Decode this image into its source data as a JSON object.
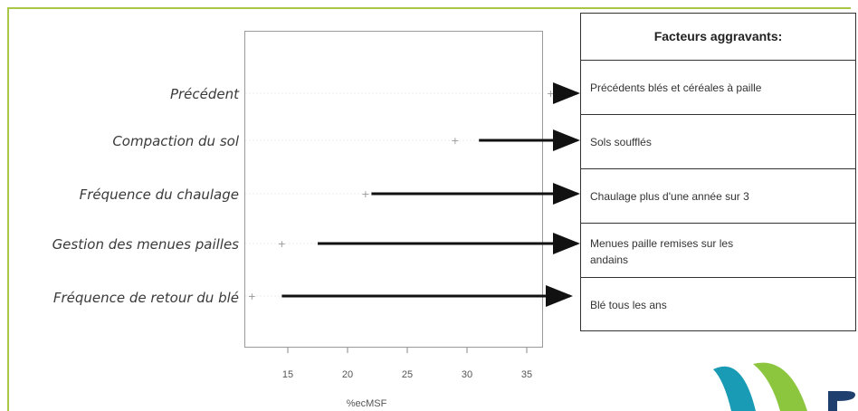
{
  "chart_data": {
    "type": "scatter",
    "title": "",
    "xlabel": "%ecMSF",
    "ylabel": "",
    "xlim": [
      11,
      37.5
    ],
    "ticks": [
      15,
      20,
      25,
      30,
      35
    ],
    "tick_labels": [
      "15",
      "20",
      "25",
      "30",
      "35"
    ],
    "categories": [
      "Précédent",
      "Compaction du sol",
      "Fréquence du chaulage",
      "Gestion des menues pailles",
      "Fréquence de retour du blé"
    ],
    "values": [
      37,
      29,
      21.5,
      14.5,
      12
    ],
    "arrows": [
      {
        "from": 37,
        "to": "Précédents blés et céréales à paille"
      },
      {
        "from": 31,
        "to": "Sols soufflés"
      },
      {
        "from": 22,
        "to": "Chaulage plus d'une année sur 3"
      },
      {
        "from": 17.5,
        "to": "Menues paille remises sur les andains"
      },
      {
        "from": 14.5,
        "to": "Blé tous les ans"
      }
    ]
  },
  "legend": {
    "header": "Facteurs aggravants:",
    "items": [
      "Précédents blés et céréales à paille",
      "Sols soufflés",
      "Chaulage plus d'une année sur 3",
      "Menues paille remises sur les andains",
      "Blé tous les ans"
    ]
  },
  "colors": {
    "frame": "#a9c646",
    "logo_teal": "#1a9bb5",
    "logo_green": "#8cc63f",
    "logo_dark": "#1f3f6e",
    "arrow": "#111111"
  }
}
